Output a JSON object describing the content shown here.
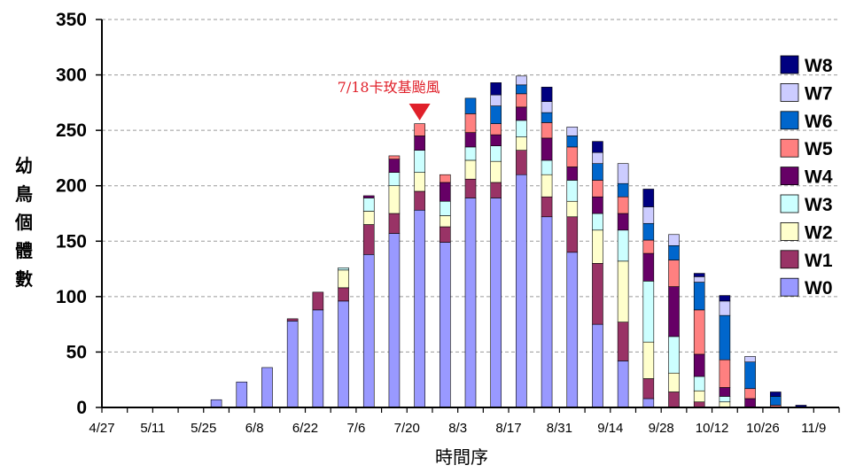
{
  "chart_data": {
    "type": "bar",
    "stacked": true,
    "ylabel": "幼鳥個體數",
    "xlabel": "時間序",
    "ylim": [
      0,
      350
    ],
    "yticks": [
      0,
      50,
      100,
      150,
      200,
      250,
      300,
      350
    ],
    "grid": "horizontal dashed",
    "legend_position": "right",
    "xtick_labels": [
      "4/27",
      "5/11",
      "5/25",
      "6/8",
      "6/22",
      "7/6",
      "7/20",
      "8/3",
      "8/17",
      "8/31",
      "9/14",
      "9/28",
      "10/12",
      "10/26",
      "11/9"
    ],
    "annotation": {
      "text": "7/18卡玫基颱風",
      "x_index": 12
    },
    "categories": [
      "4/27",
      "5/4",
      "5/11",
      "5/18",
      "5/25",
      "6/1",
      "6/8",
      "6/15",
      "6/22",
      "6/29",
      "7/6",
      "7/13",
      "7/20",
      "7/27",
      "8/3",
      "8/10",
      "8/17",
      "8/24",
      "8/31",
      "9/7",
      "9/14",
      "9/21",
      "9/28",
      "10/5",
      "10/12",
      "10/19",
      "10/26",
      "11/2",
      "11/9"
    ],
    "series": [
      {
        "name": "W0",
        "color": "#9999ff",
        "values": [
          0,
          0,
          0,
          0,
          7,
          23,
          36,
          78,
          88,
          96,
          138,
          157,
          178,
          149,
          189,
          189,
          210,
          172,
          140,
          75,
          42,
          8,
          0,
          0,
          0,
          0,
          0,
          0,
          0
        ]
      },
      {
        "name": "W1",
        "color": "#993366",
        "values": [
          0,
          0,
          0,
          0,
          0,
          0,
          0,
          2,
          16,
          12,
          27,
          18,
          17,
          14,
          17,
          14,
          22,
          18,
          32,
          55,
          35,
          18,
          14,
          5,
          0,
          0,
          0,
          0,
          0
        ]
      },
      {
        "name": "W2",
        "color": "#ffffcc",
        "values": [
          0,
          0,
          0,
          0,
          0,
          0,
          0,
          0,
          0,
          16,
          12,
          25,
          17,
          10,
          17,
          19,
          12,
          20,
          14,
          30,
          55,
          33,
          17,
          10,
          5,
          0,
          0,
          0,
          0
        ]
      },
      {
        "name": "W3",
        "color": "#ccffff",
        "values": [
          0,
          0,
          0,
          0,
          0,
          0,
          0,
          0,
          0,
          2,
          12,
          12,
          20,
          13,
          12,
          14,
          15,
          13,
          19,
          15,
          28,
          55,
          33,
          13,
          5,
          0,
          0,
          0,
          0
        ]
      },
      {
        "name": "W4",
        "color": "#660066",
        "values": [
          0,
          0,
          0,
          0,
          0,
          0,
          0,
          0,
          0,
          0,
          2,
          12,
          13,
          17,
          13,
          10,
          12,
          20,
          12,
          15,
          15,
          25,
          45,
          20,
          8,
          8,
          0,
          0,
          0
        ]
      },
      {
        "name": "W5",
        "color": "#ff8080",
        "values": [
          0,
          0,
          0,
          0,
          0,
          0,
          0,
          0,
          0,
          0,
          0,
          3,
          11,
          7,
          17,
          10,
          12,
          14,
          18,
          15,
          15,
          12,
          24,
          40,
          25,
          9,
          2,
          0,
          0
        ]
      },
      {
        "name": "W6",
        "color": "#0066cc",
        "values": [
          0,
          0,
          0,
          0,
          0,
          0,
          0,
          0,
          0,
          0,
          0,
          0,
          0,
          0,
          14,
          16,
          8,
          9,
          10,
          15,
          12,
          15,
          13,
          25,
          40,
          24,
          8,
          0,
          0
        ]
      },
      {
        "name": "W7",
        "color": "#ccccff",
        "values": [
          0,
          0,
          0,
          0,
          0,
          0,
          0,
          0,
          0,
          0,
          0,
          0,
          0,
          0,
          0,
          10,
          8,
          10,
          8,
          10,
          18,
          15,
          10,
          5,
          13,
          5,
          0,
          0,
          0
        ]
      },
      {
        "name": "W8",
        "color": "#000080",
        "values": [
          0,
          0,
          0,
          0,
          0,
          0,
          0,
          0,
          0,
          0,
          0,
          0,
          0,
          0,
          0,
          11,
          0,
          13,
          0,
          10,
          0,
          16,
          0,
          3,
          5,
          0,
          4,
          2,
          0
        ]
      }
    ]
  }
}
